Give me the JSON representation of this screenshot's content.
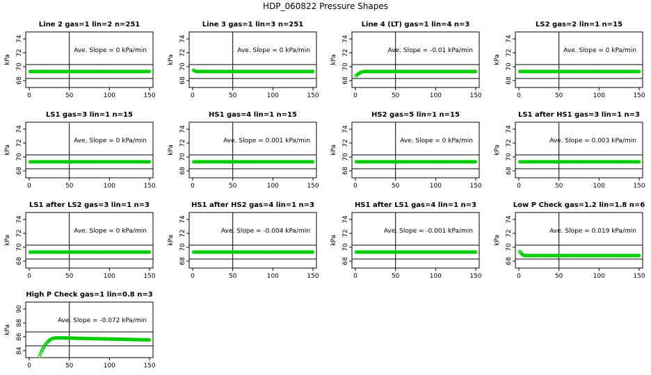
{
  "page_title": "HDP_060822  Pressure Shapes",
  "colors": {
    "points": "#00cc00",
    "lines": "#000000",
    "background": "#ffffff"
  },
  "chart_data": [
    {
      "type": "scatter",
      "title": "Line 2 gas=1 lin=2 n=251",
      "ylabel": "kPa",
      "annotation": "Ave. Slope =  0  kPa/min",
      "xlim": [
        0,
        150
      ],
      "ylim": [
        67,
        75
      ],
      "xticks": [
        0,
        50,
        100,
        150
      ],
      "yticks": [
        68,
        70,
        72,
        74
      ],
      "hlines": [
        68.3,
        70.3
      ],
      "vlines": [
        50
      ],
      "x_range": [
        1,
        150
      ],
      "y_level": 69.3
    },
    {
      "type": "scatter",
      "title": "Line 3 gas=1 lin=3 n=251",
      "ylabel": "kPa",
      "annotation": "Ave. Slope =  0  kPa/min",
      "xlim": [
        0,
        150
      ],
      "ylim": [
        67,
        75
      ],
      "xticks": [
        0,
        50,
        100,
        150
      ],
      "yticks": [
        68,
        70,
        72,
        74
      ],
      "hlines": [
        68.3,
        70.3
      ],
      "vlines": [
        50
      ],
      "x_range": [
        1,
        150
      ],
      "y_level": 69.3,
      "start_y": 69.5,
      "transition_x": 6
    },
    {
      "type": "scatter",
      "title": "Line 4 (LT) gas=1 lin=4 n=3",
      "ylabel": "kPa",
      "annotation": "Ave. Slope =  -0.01  kPa/min",
      "xlim": [
        0,
        150
      ],
      "ylim": [
        67,
        75
      ],
      "xticks": [
        0,
        50,
        100,
        150
      ],
      "yticks": [
        68,
        70,
        72,
        74
      ],
      "hlines": [
        68.3,
        70.3
      ],
      "vlines": [
        50
      ],
      "x_range": [
        1,
        150
      ],
      "y_level": 69.3,
      "start_y": 68.7,
      "transition_x": 12
    },
    {
      "type": "scatter",
      "title": "LS2 gas=2 lin=1 n=15",
      "ylabel": "kPa",
      "annotation": "Ave. Slope =  0  kPa/min",
      "xlim": [
        0,
        150
      ],
      "ylim": [
        67,
        75
      ],
      "xticks": [
        0,
        50,
        100,
        150
      ],
      "yticks": [
        68,
        70,
        72,
        74
      ],
      "hlines": [
        68.3,
        70.3
      ],
      "vlines": [
        50
      ],
      "x_range": [
        1,
        150
      ],
      "y_level": 69.3
    },
    {
      "type": "scatter",
      "title": "LS1 gas=3 lin=1 n=15",
      "ylabel": "kPa",
      "annotation": "Ave. Slope =  0  kPa/min",
      "xlim": [
        0,
        150
      ],
      "ylim": [
        67,
        75
      ],
      "xticks": [
        0,
        50,
        100,
        150
      ],
      "yticks": [
        68,
        70,
        72,
        74
      ],
      "hlines": [
        68.3,
        70.3
      ],
      "vlines": [
        50
      ],
      "x_range": [
        1,
        150
      ],
      "y_level": 69.3
    },
    {
      "type": "scatter",
      "title": "HS1 gas=4 lin=1 n=15",
      "ylabel": "kPa",
      "annotation": "Ave. Slope =  0.001  kPa/min",
      "xlim": [
        0,
        150
      ],
      "ylim": [
        67,
        75
      ],
      "xticks": [
        0,
        50,
        100,
        150
      ],
      "yticks": [
        68,
        70,
        72,
        74
      ],
      "hlines": [
        68.3,
        70.3
      ],
      "vlines": [
        50
      ],
      "x_range": [
        1,
        150
      ],
      "y_level": 69.3
    },
    {
      "type": "scatter",
      "title": "HS2 gas=5 lin=1 n=15",
      "ylabel": "kPa",
      "annotation": "Ave. Slope =  0  kPa/min",
      "xlim": [
        0,
        150
      ],
      "ylim": [
        67,
        75
      ],
      "xticks": [
        0,
        50,
        100,
        150
      ],
      "yticks": [
        68,
        70,
        72,
        74
      ],
      "hlines": [
        68.3,
        70.3
      ],
      "vlines": [
        50
      ],
      "x_range": [
        1,
        150
      ],
      "y_level": 69.3
    },
    {
      "type": "scatter",
      "title": "LS1 after HS1 gas=3 lin=1 n=3",
      "ylabel": "kPa",
      "annotation": "Ave. Slope =  0.003  kPa/min",
      "xlim": [
        0,
        150
      ],
      "ylim": [
        67,
        75
      ],
      "xticks": [
        0,
        50,
        100,
        150
      ],
      "yticks": [
        68,
        70,
        72,
        74
      ],
      "hlines": [
        68.3,
        70.3
      ],
      "vlines": [
        50
      ],
      "x_range": [
        1,
        150
      ],
      "y_level": 69.3
    },
    {
      "type": "scatter",
      "title": "LS1 after LS2 gas=3 lin=1 n=3",
      "ylabel": "kPa",
      "annotation": "Ave. Slope =  0  kPa/min",
      "xlim": [
        0,
        150
      ],
      "ylim": [
        67,
        75
      ],
      "xticks": [
        0,
        50,
        100,
        150
      ],
      "yticks": [
        68,
        70,
        72,
        74
      ],
      "hlines": [
        68.3,
        70.3
      ],
      "vlines": [
        50
      ],
      "x_range": [
        1,
        150
      ],
      "y_level": 69.3
    },
    {
      "type": "scatter",
      "title": "HS1 after HS2 gas=4 lin=1 n=3",
      "ylabel": "kPa",
      "annotation": "Ave. Slope =  -0.004  kPa/min",
      "xlim": [
        0,
        150
      ],
      "ylim": [
        67,
        75
      ],
      "xticks": [
        0,
        50,
        100,
        150
      ],
      "yticks": [
        68,
        70,
        72,
        74
      ],
      "hlines": [
        68.3,
        70.3
      ],
      "vlines": [
        50
      ],
      "x_range": [
        1,
        150
      ],
      "y_level": 69.3
    },
    {
      "type": "scatter",
      "title": "HS1 after LS1 gas=4 lin=1 n=3",
      "ylabel": "kPa",
      "annotation": "Ave. Slope =  -0.001  kPa/min",
      "xlim": [
        0,
        150
      ],
      "ylim": [
        67,
        75
      ],
      "xticks": [
        0,
        50,
        100,
        150
      ],
      "yticks": [
        68,
        70,
        72,
        74
      ],
      "hlines": [
        68.3,
        70.3
      ],
      "vlines": [
        50
      ],
      "x_range": [
        1,
        150
      ],
      "y_level": 69.3
    },
    {
      "type": "scatter",
      "title": "Low P Check gas=1.2 lin=1.8 n=6",
      "ylabel": "kPa",
      "annotation": "Ave. Slope =  0.019  kPa/min",
      "xlim": [
        0,
        150
      ],
      "ylim": [
        67,
        75
      ],
      "xticks": [
        0,
        50,
        100,
        150
      ],
      "yticks": [
        68,
        70,
        72,
        74
      ],
      "hlines": [
        68.3,
        70.3
      ],
      "vlines": [
        50
      ],
      "x_range": [
        1,
        150
      ],
      "y_level": 68.8,
      "start_y": 69.4,
      "transition_x": 8
    },
    {
      "type": "scatter",
      "title": "High P Check gas=1 lin=0.8 n=3",
      "ylabel": "kPa",
      "annotation": "Ave. Slope =  -0.072  kPa/min",
      "xlim": [
        0,
        150
      ],
      "ylim": [
        83,
        91
      ],
      "xticks": [
        0,
        50,
        100,
        150
      ],
      "yticks": [
        84,
        86,
        88,
        90
      ],
      "hlines": [
        84.7,
        86.7
      ],
      "vlines": [
        50
      ],
      "x_range": [
        13,
        150
      ],
      "y_level": 85.7,
      "start_y": 83.2,
      "transition_x": 35,
      "peak_y": 85.85,
      "end_y": 85.55
    }
  ]
}
